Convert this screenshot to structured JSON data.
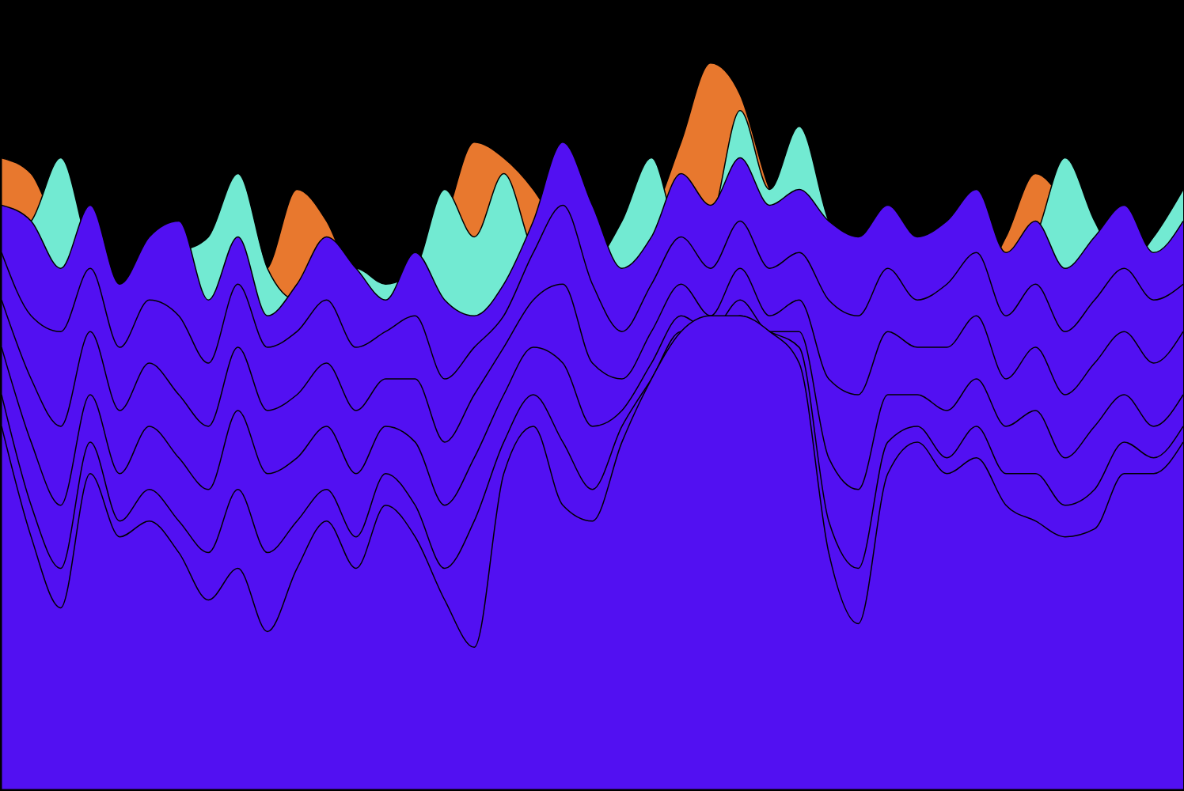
{
  "chart_data": {
    "type": "area",
    "tick_labels": false,
    "xlim": [
      0,
      40
    ],
    "ylim": [
      0,
      100
    ],
    "x": [
      0,
      1,
      2,
      3,
      4,
      5,
      6,
      7,
      8,
      9,
      10,
      11,
      12,
      13,
      14,
      15,
      16,
      17,
      18,
      19,
      20,
      21,
      22,
      23,
      24,
      25,
      26,
      27,
      28,
      29,
      30,
      31,
      32,
      33,
      34,
      35,
      36,
      37,
      38,
      39,
      40
    ],
    "series": [
      {
        "color": "#e8782e",
        "values": [
          80,
          78,
          70,
          66,
          64,
          62,
          60,
          62,
          64,
          66,
          76,
          72,
          64,
          62,
          66,
          72,
          82,
          80,
          76,
          70,
          64,
          66,
          72,
          82,
          92,
          88,
          76,
          70,
          68,
          66,
          70,
          68,
          66,
          64,
          70,
          78,
          74,
          66,
          64,
          66,
          68
        ]
      },
      {
        "color": "#72ead2",
        "values": [
          70,
          72,
          80,
          68,
          64,
          66,
          68,
          70,
          78,
          66,
          62,
          64,
          66,
          64,
          66,
          76,
          70,
          78,
          68,
          64,
          66,
          72,
          80,
          70,
          72,
          86,
          76,
          84,
          72,
          66,
          64,
          66,
          62,
          64,
          66,
          70,
          80,
          72,
          66,
          70,
          76
        ]
      },
      {
        "color": "#5210f2",
        "values": [
          74,
          72,
          66,
          74,
          64,
          70,
          72,
          62,
          70,
          60,
          64,
          70,
          66,
          62,
          68,
          62,
          60,
          64,
          72,
          82,
          74,
          66,
          70,
          78,
          74,
          80,
          74,
          76,
          72,
          70,
          74,
          70,
          72,
          76,
          68,
          72,
          66,
          70,
          74,
          68,
          72
        ]
      },
      {
        "color": "#5210f2",
        "values": [
          68,
          60,
          58,
          66,
          56,
          62,
          60,
          54,
          64,
          56,
          58,
          62,
          56,
          58,
          60,
          52,
          56,
          60,
          68,
          74,
          64,
          58,
          64,
          70,
          66,
          72,
          66,
          68,
          62,
          60,
          66,
          62,
          64,
          68,
          60,
          64,
          58,
          62,
          66,
          62,
          64
        ]
      },
      {
        "color": "#5210f2",
        "values": [
          62,
          52,
          46,
          58,
          48,
          54,
          50,
          46,
          56,
          48,
          50,
          54,
          48,
          52,
          52,
          44,
          50,
          56,
          62,
          64,
          54,
          52,
          58,
          64,
          60,
          66,
          60,
          62,
          52,
          50,
          58,
          56,
          56,
          60,
          52,
          56,
          50,
          54,
          58,
          54,
          58
        ]
      },
      {
        "color": "#5210f2",
        "values": [
          56,
          44,
          36,
          50,
          40,
          46,
          42,
          38,
          48,
          40,
          42,
          46,
          40,
          46,
          44,
          36,
          42,
          50,
          56,
          54,
          46,
          48,
          54,
          60,
          58,
          62,
          58,
          58,
          42,
          38,
          50,
          50,
          48,
          52,
          46,
          48,
          42,
          46,
          50,
          46,
          50
        ]
      },
      {
        "color": "#5210f2",
        "values": [
          50,
          36,
          28,
          44,
          34,
          38,
          34,
          30,
          38,
          30,
          34,
          38,
          32,
          40,
          36,
          28,
          34,
          44,
          50,
          44,
          38,
          46,
          52,
          58,
          58,
          60,
          58,
          56,
          34,
          28,
          44,
          46,
          42,
          46,
          40,
          40,
          36,
          38,
          44,
          42,
          46
        ]
      },
      {
        "color": "#5210f2",
        "values": [
          46,
          32,
          23,
          40,
          32,
          34,
          30,
          24,
          28,
          20,
          28,
          34,
          28,
          36,
          32,
          24,
          18,
          40,
          46,
          36,
          34,
          44,
          52,
          58,
          60,
          60,
          58,
          54,
          30,
          21,
          40,
          44,
          40,
          42,
          36,
          34,
          32,
          33,
          40,
          40,
          44
        ]
      }
    ]
  }
}
